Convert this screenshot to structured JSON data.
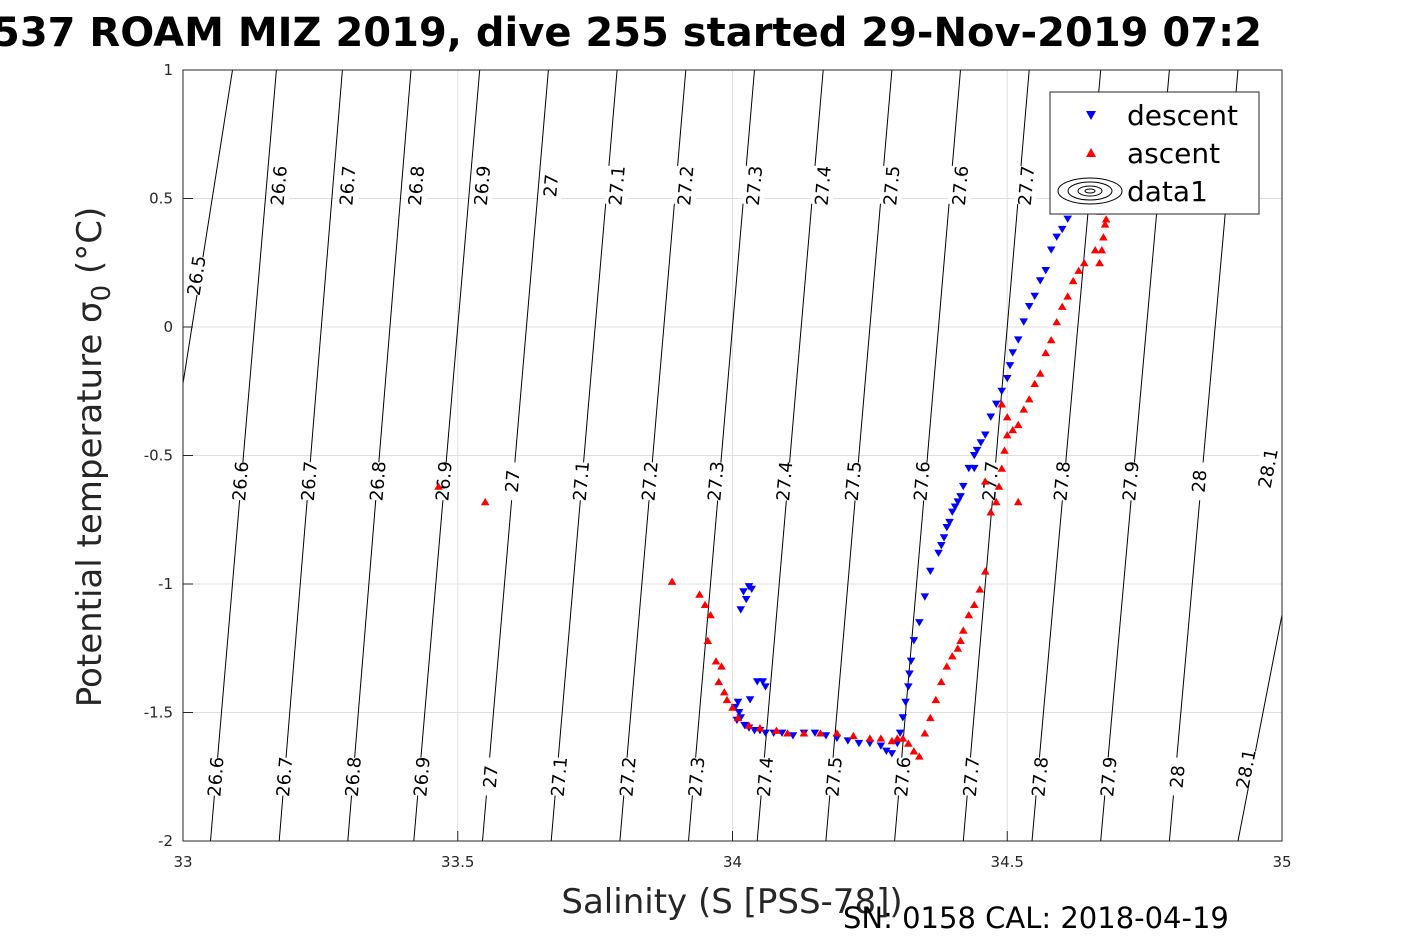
{
  "figure": {
    "title": "537 ROAM MIZ 2019, dive 255 started 29-Nov-2019 07:2",
    "footer": "SN: 0158  CAL: 2018-04-19"
  },
  "chart_data": {
    "type": "scatter",
    "title": "537 ROAM MIZ 2019, dive 255 started 29-Nov-2019 07:2",
    "xlabel": "Salinity (S [PSS-78])",
    "ylabel": "Potential temperature σ 0 (°C)",
    "ylabel_main": "Potential temperature ",
    "ylabel_sigma": "σ",
    "ylabel_sub": "0",
    "ylabel_unit": " (°C)",
    "xlim": [
      33,
      35
    ],
    "ylim": [
      -2,
      1
    ],
    "xticks": [
      "33",
      "33.5",
      "34",
      "34.5",
      "35"
    ],
    "yticks": [
      "-2",
      "-1.5",
      "-1",
      "-0.5",
      "0",
      "0.5",
      "1"
    ],
    "grid": true,
    "legend_position": "top-right",
    "legend": [
      "descent",
      "ascent",
      "data1"
    ],
    "colors": {
      "descent": "#0000ff",
      "ascent": "#ff0000",
      "contour": "#000000"
    },
    "density_contours": {
      "levels": [
        "26.5",
        "26.6",
        "26.7",
        "26.8",
        "26.9",
        "27",
        "27.1",
        "27.2",
        "27.3",
        "27.4",
        "27.5",
        "27.6",
        "27.7",
        "27.8",
        "27.9",
        "28",
        "28.1"
      ],
      "line_points": [
        [
          [
            33.0,
            -0.22
          ],
          [
            33.09,
            1.0
          ]
        ],
        [
          [
            33.05,
            -2.0
          ],
          [
            33.17,
            1.0
          ]
        ],
        [
          [
            33.175,
            -2.0
          ],
          [
            33.29,
            1.0
          ]
        ],
        [
          [
            33.3,
            -2.0
          ],
          [
            33.415,
            1.0
          ]
        ],
        [
          [
            33.42,
            -2.0
          ],
          [
            33.54,
            1.0
          ]
        ],
        [
          [
            33.545,
            -2.0
          ],
          [
            33.665,
            1.0
          ]
        ],
        [
          [
            33.67,
            -2.0
          ],
          [
            33.79,
            1.0
          ]
        ],
        [
          [
            33.795,
            -2.0
          ],
          [
            33.915,
            1.0
          ]
        ],
        [
          [
            33.92,
            -2.0
          ],
          [
            34.04,
            1.0
          ]
        ],
        [
          [
            34.045,
            -2.0
          ],
          [
            34.165,
            1.0
          ]
        ],
        [
          [
            34.17,
            -2.0
          ],
          [
            34.29,
            1.0
          ]
        ],
        [
          [
            34.295,
            -2.0
          ],
          [
            34.415,
            1.0
          ]
        ],
        [
          [
            34.42,
            -2.0
          ],
          [
            34.54,
            1.0
          ]
        ],
        [
          [
            34.545,
            -2.0
          ],
          [
            34.67,
            1.0
          ]
        ],
        [
          [
            34.67,
            -2.0
          ],
          [
            34.795,
            1.0
          ]
        ],
        [
          [
            34.795,
            -2.0
          ],
          [
            34.92,
            1.0
          ]
        ],
        [
          [
            34.92,
            -2.0
          ],
          [
            35.0,
            -1.12
          ]
        ]
      ],
      "label_positions": [
        [
          [
            33.025,
            0.2
          ]
        ],
        [
          [
            33.175,
            0.55
          ],
          [
            33.105,
            -0.6
          ],
          [
            33.06,
            -1.75
          ]
        ],
        [
          [
            33.3,
            0.55
          ],
          [
            33.23,
            -0.6
          ],
          [
            33.185,
            -1.75
          ]
        ],
        [
          [
            33.425,
            0.55
          ],
          [
            33.355,
            -0.6
          ],
          [
            33.31,
            -1.75
          ]
        ],
        [
          [
            33.545,
            0.55
          ],
          [
            33.475,
            -0.6
          ],
          [
            33.435,
            -1.75
          ]
        ],
        [
          [
            33.67,
            0.55
          ],
          [
            33.6,
            -0.6
          ],
          [
            33.56,
            -1.75
          ]
        ],
        [
          [
            33.79,
            0.55
          ],
          [
            33.725,
            -0.6
          ],
          [
            33.685,
            -1.75
          ]
        ],
        [
          [
            33.915,
            0.55
          ],
          [
            33.85,
            -0.6
          ],
          [
            33.81,
            -1.75
          ]
        ],
        [
          [
            34.04,
            0.55
          ],
          [
            33.97,
            -0.6
          ],
          [
            33.935,
            -1.75
          ]
        ],
        [
          [
            34.165,
            0.55
          ],
          [
            34.095,
            -0.6
          ],
          [
            34.06,
            -1.75
          ]
        ],
        [
          [
            34.29,
            0.55
          ],
          [
            34.22,
            -0.6
          ],
          [
            34.185,
            -1.75
          ]
        ],
        [
          [
            34.415,
            0.55
          ],
          [
            34.345,
            -0.6
          ],
          [
            34.31,
            -1.75
          ]
        ],
        [
          [
            34.535,
            0.55
          ],
          [
            34.47,
            -0.6
          ],
          [
            34.435,
            -1.75
          ]
        ],
        [
          [
            34.6,
            -0.6
          ],
          [
            34.56,
            -1.75
          ]
        ],
        [
          [
            34.725,
            -0.6
          ],
          [
            34.685,
            -1.75
          ]
        ],
        [
          [
            34.85,
            -0.6
          ],
          [
            34.81,
            -1.75
          ]
        ],
        [
          [
            34.975,
            -0.55
          ],
          [
            34.935,
            -1.72
          ]
        ]
      ]
    },
    "series": [
      {
        "name": "descent",
        "marker": "triangle-down",
        "color": "#0000ff",
        "x": [
          34.02,
          34.035,
          34.025,
          34.015,
          34.03,
          34.01,
          34.005,
          34.012,
          34.008,
          34.015,
          34.022,
          34.03,
          34.04,
          34.05,
          34.06,
          34.075,
          34.09,
          34.11,
          34.13,
          34.15,
          34.17,
          34.19,
          34.21,
          34.23,
          34.25,
          34.27,
          34.28,
          34.29,
          34.3,
          34.305,
          34.31,
          34.315,
          34.32,
          34.322,
          34.325,
          34.33,
          34.34,
          34.35,
          34.36,
          34.375,
          34.38,
          34.385,
          34.39,
          34.395,
          34.4,
          34.405,
          34.41,
          34.415,
          34.42,
          34.43,
          34.44,
          34.445,
          34.44,
          34.452,
          34.46,
          34.47,
          34.48,
          34.49,
          34.5,
          34.505,
          34.51,
          34.52,
          34.53,
          34.54,
          34.55,
          34.56,
          34.57,
          34.58,
          34.59,
          34.6,
          34.61,
          34.62,
          34.63,
          34.64,
          34.642,
          34.65,
          34.06,
          34.055,
          34.045,
          34.032
        ],
        "y": [
          -1.03,
          -1.02,
          -1.06,
          -1.1,
          -1.01,
          -1.46,
          -1.48,
          -1.5,
          -1.53,
          -1.52,
          -1.55,
          -1.56,
          -1.57,
          -1.57,
          -1.58,
          -1.58,
          -1.58,
          -1.59,
          -1.58,
          -1.58,
          -1.59,
          -1.6,
          -1.61,
          -1.62,
          -1.62,
          -1.63,
          -1.65,
          -1.66,
          -1.62,
          -1.58,
          -1.52,
          -1.46,
          -1.4,
          -1.35,
          -1.3,
          -1.22,
          -1.15,
          -1.05,
          -0.95,
          -0.88,
          -0.85,
          -0.82,
          -0.78,
          -0.76,
          -0.72,
          -0.7,
          -0.68,
          -0.66,
          -0.62,
          -0.55,
          -0.5,
          -0.48,
          -0.55,
          -0.45,
          -0.42,
          -0.35,
          -0.3,
          -0.25,
          -0.2,
          -0.15,
          -0.1,
          -0.05,
          0.02,
          0.08,
          0.12,
          0.18,
          0.22,
          0.3,
          0.35,
          0.38,
          0.42,
          0.48,
          0.46,
          0.5,
          0.56,
          0.55,
          -1.4,
          -1.38,
          -1.38,
          -1.45
        ]
      },
      {
        "name": "ascent",
        "marker": "triangle-up",
        "color": "#ff0000",
        "x": [
          33.465,
          33.55,
          33.89,
          33.94,
          33.95,
          33.96,
          33.955,
          33.97,
          33.98,
          33.975,
          33.985,
          33.99,
          34.0,
          34.01,
          34.03,
          34.05,
          34.08,
          34.1,
          34.13,
          34.16,
          34.19,
          34.22,
          34.25,
          34.27,
          34.29,
          34.3,
          34.31,
          34.32,
          34.33,
          34.34,
          34.35,
          34.36,
          34.37,
          34.38,
          34.39,
          34.4,
          34.41,
          34.415,
          34.42,
          34.43,
          34.44,
          34.45,
          34.46,
          34.47,
          34.48,
          34.485,
          34.49,
          34.495,
          34.5,
          34.51,
          34.52,
          34.53,
          34.54,
          34.55,
          34.56,
          34.57,
          34.58,
          34.59,
          34.6,
          34.61,
          34.62,
          34.63,
          34.64,
          34.66,
          34.668,
          34.672,
          34.675,
          34.678,
          34.67,
          34.674,
          34.676,
          34.68,
          34.49,
          34.5,
          34.46,
          34.52
        ],
        "y": [
          -0.62,
          -0.68,
          -0.99,
          -1.04,
          -1.08,
          -1.12,
          -1.22,
          -1.3,
          -1.32,
          -1.38,
          -1.42,
          -1.45,
          -1.48,
          -1.52,
          -1.55,
          -1.56,
          -1.57,
          -1.58,
          -1.58,
          -1.58,
          -1.58,
          -1.59,
          -1.6,
          -1.6,
          -1.61,
          -1.6,
          -1.6,
          -1.62,
          -1.65,
          -1.67,
          -1.58,
          -1.52,
          -1.45,
          -1.38,
          -1.32,
          -1.28,
          -1.25,
          -1.22,
          -1.18,
          -1.12,
          -1.08,
          -1.02,
          -0.95,
          -0.72,
          -0.68,
          -0.62,
          -0.55,
          -0.48,
          -0.42,
          -0.4,
          -0.38,
          -0.32,
          -0.28,
          -0.22,
          -0.18,
          -0.1,
          -0.05,
          0.02,
          0.08,
          0.12,
          0.18,
          0.22,
          0.25,
          0.3,
          0.25,
          0.3,
          0.35,
          0.4,
          0.45,
          0.5,
          0.55,
          0.42,
          -0.3,
          -0.35,
          -0.6,
          -0.68
        ]
      }
    ]
  }
}
